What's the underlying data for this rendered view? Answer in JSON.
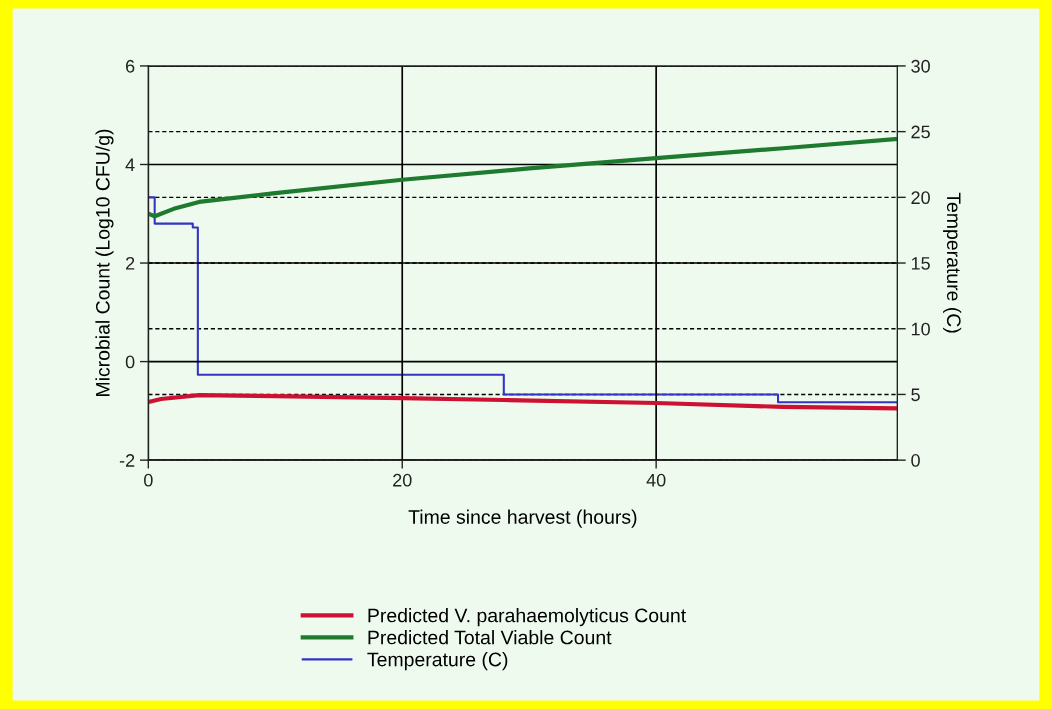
{
  "chart_data": {
    "type": "line",
    "xlabel": "Time since harvest (hours)",
    "ylabel": "Microbial Count (Log10 CFU/g)",
    "y2label": "Temperature (C)",
    "xlim": [
      0,
      59
    ],
    "xticks": [
      0,
      20,
      40
    ],
    "ylim": [
      -2,
      6
    ],
    "yticks": [
      -2,
      0,
      2,
      4,
      6
    ],
    "y2lim": [
      0,
      30
    ],
    "y2ticks": [
      0,
      5,
      10,
      15,
      20,
      25,
      30
    ],
    "grid": true,
    "legend": "bottom",
    "series": [
      {
        "name": "Predicted V. parahaemolyticus Count",
        "color": "#cc1133",
        "x": [
          0,
          1,
          4,
          10,
          20,
          28,
          40,
          50,
          59
        ],
        "values": [
          -0.82,
          -0.76,
          -0.68,
          -0.7,
          -0.74,
          -0.78,
          -0.84,
          -0.92,
          -0.95
        ]
      },
      {
        "name": "Predicted Total Viable Count",
        "color": "#1e7a2e",
        "x": [
          0,
          0.5,
          2,
          4,
          10,
          20,
          30,
          40,
          50,
          59
        ],
        "values": [
          3.0,
          2.95,
          3.1,
          3.24,
          3.42,
          3.69,
          3.92,
          4.13,
          4.33,
          4.52
        ]
      },
      {
        "name": "Temperature (C)",
        "type": "step",
        "axis": "y2",
        "color": "#3434c4",
        "x": [
          0,
          0.5,
          3.5,
          3.9,
          28,
          49.6,
          59
        ],
        "values": [
          20,
          18,
          17.7,
          6.5,
          5,
          4.4,
          4.4
        ]
      }
    ]
  }
}
